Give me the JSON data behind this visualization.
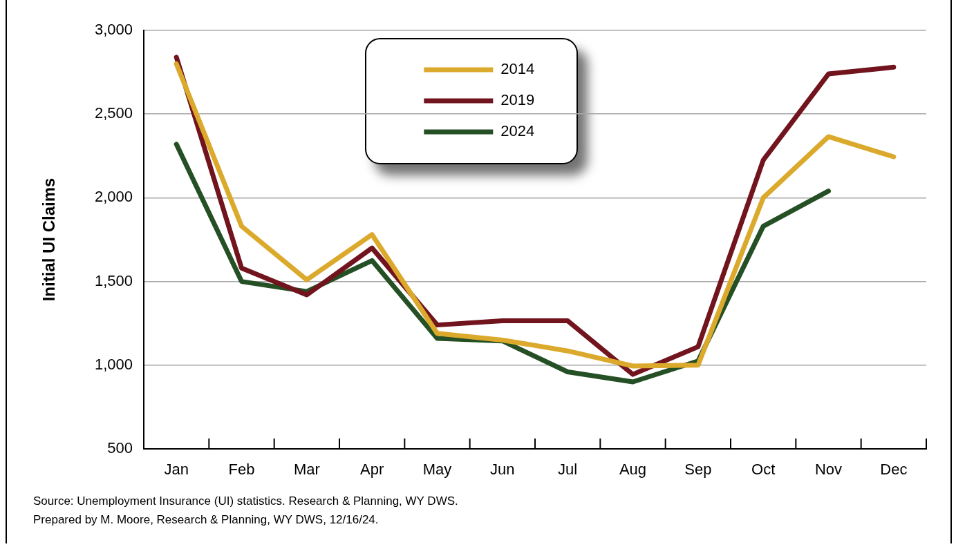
{
  "chart_data": {
    "type": "line",
    "ylabel": "Initial UI Claims",
    "categories": [
      "Jan",
      "Feb",
      "Mar",
      "Apr",
      "May",
      "Jun",
      "Jul",
      "Aug",
      "Sep",
      "Oct",
      "Nov",
      "Dec"
    ],
    "series": [
      {
        "name": "2014",
        "color": "#dba92b",
        "values": [
          2800,
          1830,
          1510,
          1780,
          1190,
          1150,
          1085,
          995,
          1000,
          2000,
          2365,
          2245
        ]
      },
      {
        "name": "2019",
        "color": "#72141e",
        "values": [
          2840,
          1580,
          1420,
          1700,
          1240,
          1265,
          1265,
          945,
          1110,
          2225,
          2740,
          2780
        ]
      },
      {
        "name": "2024",
        "color": "#254f24",
        "values": [
          2320,
          1500,
          1440,
          1625,
          1160,
          1145,
          960,
          900,
          1025,
          1830,
          2040,
          null
        ]
      }
    ],
    "ylim": [
      500,
      3000
    ],
    "yticks": [
      500,
      {
        "value": 1000,
        "label": "1,000"
      },
      {
        "value": 1500,
        "label": "1,500"
      },
      {
        "value": 2000,
        "label": "2,000"
      },
      {
        "value": 2500,
        "label": "2,500"
      },
      {
        "value": 3000,
        "label": "3,000"
      }
    ],
    "grid": "y",
    "legend": "top",
    "annotations": [
      "Source: Unemployment Insurance (UI) statistics. Research & Planning, WY DWS.",
      "Prepared by M. Moore, Research & Planning, WY DWS, 12/16/24."
    ]
  }
}
